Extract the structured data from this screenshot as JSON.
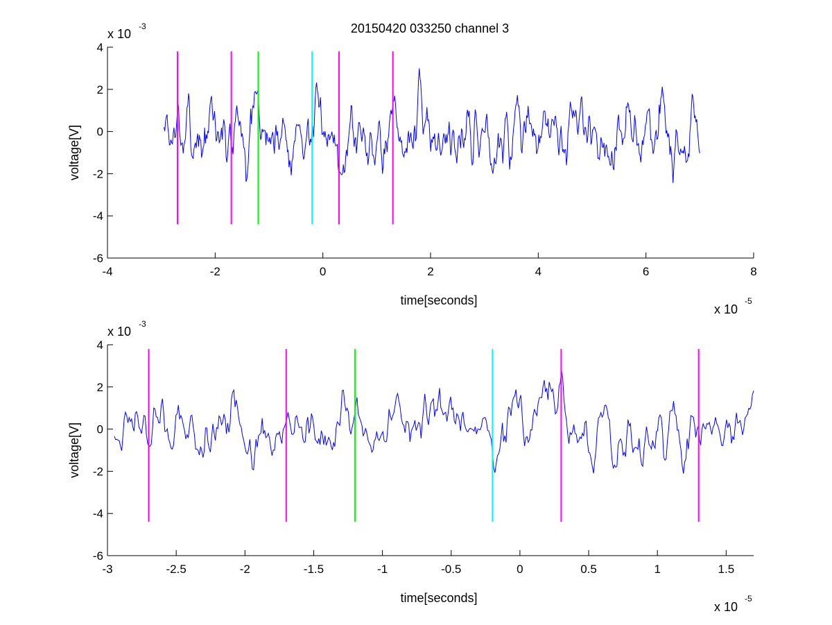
{
  "figure": {
    "title": "20150420 033250 channel 3"
  },
  "chart_data": [
    {
      "type": "line",
      "title": "20150420 033250 channel 3",
      "xlabel": "time[seconds]",
      "ylabel": "voltage[V]",
      "x_multiplier_base": "x 10",
      "x_multiplier_exp": "-5",
      "y_multiplier_base": "x 10",
      "y_multiplier_exp": "-3",
      "xlim": [
        -4,
        8
      ],
      "ylim": [
        -6,
        4
      ],
      "xticks": [
        -4,
        -2,
        0,
        2,
        4,
        6,
        8
      ],
      "xtick_labels": [
        "-4",
        "-2",
        "0",
        "2",
        "4",
        "6",
        "8"
      ],
      "yticks": [
        -6,
        -4,
        -2,
        0,
        2,
        4
      ],
      "ytick_labels": [
        "-6",
        "-4",
        "-2",
        "0",
        "2",
        "4"
      ],
      "grid": false,
      "signal": {
        "color": "#0000ff",
        "x_start": -2.95,
        "x_end": 7.0,
        "y_range": [
          -4.0,
          3.5
        ],
        "samples": 700,
        "seed": 7
      },
      "markers": [
        {
          "x": -2.7,
          "color": "#ff00ff",
          "y_from": -4.4,
          "y_to": 3.8
        },
        {
          "x": -1.7,
          "color": "#ff00ff",
          "y_from": -4.4,
          "y_to": 3.8
        },
        {
          "x": -1.2,
          "color": "#00ff00",
          "y_from": -4.4,
          "y_to": 3.8
        },
        {
          "x": -0.2,
          "color": "#00ffff",
          "y_from": -4.4,
          "y_to": 3.8
        },
        {
          "x": 0.3,
          "color": "#ff00ff",
          "y_from": -4.4,
          "y_to": 3.8
        },
        {
          "x": 1.3,
          "color": "#ff00ff",
          "y_from": -4.4,
          "y_to": 3.8
        }
      ]
    },
    {
      "type": "line",
      "title": "",
      "xlabel": "time[seconds]",
      "ylabel": "voltage[V]",
      "x_multiplier_base": "x 10",
      "x_multiplier_exp": "-5",
      "y_multiplier_base": "x 10",
      "y_multiplier_exp": "-3",
      "xlim": [
        -3.0,
        1.7
      ],
      "ylim": [
        -6,
        4
      ],
      "xticks": [
        -3,
        -2.5,
        -2,
        -1.5,
        -1,
        -0.5,
        0,
        0.5,
        1,
        1.5
      ],
      "xtick_labels": [
        "-3",
        "-2.5",
        "-2",
        "-1.5",
        "-1",
        "-0.5",
        "0",
        "0.5",
        "1",
        "1.5"
      ],
      "yticks": [
        -6,
        -4,
        -2,
        0,
        2,
        4
      ],
      "ytick_labels": [
        "-6",
        "-4",
        "-2",
        "0",
        "2",
        "4"
      ],
      "grid": false,
      "signal": {
        "color": "#0000ff",
        "x_start": -2.95,
        "x_end": 1.7,
        "y_range": [
          -4.0,
          3.4
        ],
        "samples": 520,
        "seed": 19
      },
      "markers": [
        {
          "x": -2.7,
          "color": "#ff00ff",
          "y_from": -4.4,
          "y_to": 3.8
        },
        {
          "x": -1.7,
          "color": "#ff00ff",
          "y_from": -4.4,
          "y_to": 3.8
        },
        {
          "x": -1.2,
          "color": "#00ff00",
          "y_from": -4.4,
          "y_to": 3.8
        },
        {
          "x": -0.2,
          "color": "#00ffff",
          "y_from": -4.4,
          "y_to": 3.8
        },
        {
          "x": 0.3,
          "color": "#ff00ff",
          "y_from": -4.4,
          "y_to": 3.8
        },
        {
          "x": 1.3,
          "color": "#ff00ff",
          "y_from": -4.4,
          "y_to": 3.8
        }
      ]
    }
  ]
}
